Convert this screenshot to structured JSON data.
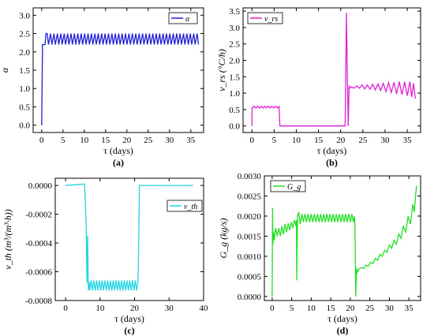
{
  "chart_data": [
    {
      "type": "line",
      "panel_label": "(a)",
      "xlabel": "τ (days)",
      "ylabel": "α",
      "xlim": [
        -2,
        38
      ],
      "ylim": [
        -0.2,
        3.2
      ],
      "xticks": [
        0,
        5,
        10,
        15,
        20,
        25,
        30,
        35
      ],
      "yticks": [
        0.0,
        0.5,
        1.0,
        1.5,
        2.0,
        2.5,
        3.0
      ],
      "ytick_labels": [
        "0.0",
        "0.5",
        "1.0",
        "1.5",
        "2.0",
        "2.5",
        "3.0"
      ],
      "legend_position": "top-right",
      "series": [
        {
          "name": "α",
          "color": "#1f1fd6",
          "x": [
            0,
            0.2,
            0.5,
            0.8,
            1.0,
            1.3,
            1.6,
            2.1,
            2.4,
            2.9,
            3.2,
            3.7,
            4.0,
            4.5,
            4.8,
            5.3,
            5.6,
            6.1,
            6.4,
            6.9,
            7.2,
            7.7,
            8.0,
            8.5,
            8.8,
            9.3,
            9.6,
            10.1,
            10.4,
            10.9,
            11.2,
            11.7,
            12.0,
            12.5,
            12.8,
            13.3,
            13.6,
            14.1,
            14.4,
            14.9,
            15.2,
            15.7,
            16.0,
            16.5,
            16.8,
            17.3,
            17.6,
            18.1,
            18.4,
            18.9,
            19.2,
            19.7,
            20.0,
            20.5,
            20.8,
            21.3,
            21.6,
            22.1,
            22.4,
            22.9,
            23.2,
            23.7,
            24.0,
            24.5,
            24.8,
            25.3,
            25.6,
            26.1,
            26.4,
            26.9,
            27.2,
            27.7,
            28.0,
            28.5,
            28.8,
            29.3,
            29.6,
            30.1,
            30.4,
            30.9,
            31.2,
            31.7,
            32.0,
            32.5,
            32.8,
            33.3,
            33.6,
            34.1,
            34.4,
            34.9,
            35.2,
            35.7,
            36.0,
            36.5,
            36.8
          ],
          "y": [
            0.0,
            2.2,
            2.2,
            2.2,
            2.5,
            2.5,
            2.2,
            2.5,
            2.2,
            2.5,
            2.2,
            2.5,
            2.2,
            2.5,
            2.2,
            2.5,
            2.2,
            2.5,
            2.2,
            2.5,
            2.2,
            2.5,
            2.2,
            2.5,
            2.2,
            2.5,
            2.2,
            2.5,
            2.2,
            2.5,
            2.2,
            2.5,
            2.2,
            2.5,
            2.2,
            2.5,
            2.2,
            2.5,
            2.2,
            2.5,
            2.2,
            2.5,
            2.2,
            2.5,
            2.2,
            2.5,
            2.2,
            2.5,
            2.2,
            2.5,
            2.2,
            2.5,
            2.2,
            2.5,
            2.2,
            2.5,
            2.2,
            2.5,
            2.2,
            2.5,
            2.2,
            2.5,
            2.2,
            2.5,
            2.2,
            2.5,
            2.2,
            2.5,
            2.2,
            2.5,
            2.2,
            2.5,
            2.2,
            2.5,
            2.2,
            2.5,
            2.2,
            2.5,
            2.2,
            2.5,
            2.2,
            2.5,
            2.2,
            2.5,
            2.2,
            2.5,
            2.2,
            2.5,
            2.2,
            2.5,
            2.2,
            2.5,
            2.2,
            2.5,
            2.2
          ]
        }
      ]
    },
    {
      "type": "line",
      "panel_label": "(b)",
      "xlabel": "τ (days)",
      "ylabel": "v_rs (°C/h)",
      "xlim": [
        -2,
        38
      ],
      "ylim": [
        -0.2,
        3.6
      ],
      "xticks": [
        0,
        5,
        10,
        15,
        20,
        25,
        30,
        35
      ],
      "yticks": [
        0.0,
        0.5,
        1.0,
        1.5,
        2.0,
        2.5,
        3.0,
        3.5
      ],
      "ytick_labels": [
        "0.0",
        "0.5",
        "1.0",
        "1.5",
        "2.0",
        "2.5",
        "3.0",
        "3.5"
      ],
      "legend_position": "top-left",
      "series": [
        {
          "name": "v_rs",
          "color": "#e020d8",
          "x": [
            0,
            0.05,
            0.5,
            0.9,
            1.3,
            1.7,
            2.1,
            2.5,
            2.9,
            3.3,
            3.7,
            4.1,
            4.5,
            4.9,
            5.3,
            5.7,
            6.1,
            6.2,
            6.3,
            10,
            15,
            20,
            21.0,
            21.3,
            21.5,
            21.7,
            21.9,
            22.1,
            22.4,
            23.0,
            23.6,
            24.2,
            24.8,
            25.4,
            26.0,
            26.6,
            27.2,
            27.8,
            28.4,
            29.0,
            29.6,
            30.2,
            30.8,
            31.4,
            32.0,
            32.6,
            33.2,
            33.8,
            34.4,
            35.0,
            35.6,
            36.0,
            36.4,
            36.8,
            37.0
          ],
          "y": [
            0.0,
            0.55,
            0.6,
            0.55,
            0.6,
            0.55,
            0.6,
            0.55,
            0.6,
            0.55,
            0.6,
            0.55,
            0.6,
            0.55,
            0.6,
            0.55,
            0.6,
            0.3,
            0.0,
            0.0,
            0.0,
            0.0,
            0.0,
            3.45,
            1.5,
            0.0,
            1.2,
            1.15,
            1.2,
            1.15,
            1.22,
            1.15,
            1.25,
            1.13,
            1.25,
            1.12,
            1.27,
            1.1,
            1.28,
            1.08,
            1.3,
            1.05,
            1.32,
            1.02,
            1.33,
            0.98,
            1.35,
            0.95,
            1.35,
            0.92,
            1.35,
            0.88,
            1.3,
            0.85,
            0.85
          ]
        }
      ]
    },
    {
      "type": "line",
      "panel_label": "(c)",
      "xlabel": "τ (days)",
      "ylabel": "v_th (m³/(m³·h))",
      "xlim": [
        -3,
        40
      ],
      "ylim": [
        -0.0008,
        5e-05
      ],
      "xticks": [
        0,
        10,
        20,
        30,
        40
      ],
      "yticks": [
        0.0,
        -0.0002,
        -0.0004,
        -0.0006,
        -0.0008
      ],
      "ytick_labels": [
        "0.0000",
        "-0.0002",
        "-0.0004",
        "-0.0006",
        "-0.0008"
      ],
      "legend_position": "right",
      "series": [
        {
          "name": "v_th",
          "color": "#22d4e4",
          "x": [
            0,
            3,
            5.5,
            6.0,
            6.2,
            6.4,
            6.6,
            6.8,
            7.0,
            7.4,
            7.8,
            8.2,
            8.6,
            9.0,
            9.4,
            9.8,
            10.2,
            10.6,
            11.0,
            11.4,
            11.8,
            12.2,
            12.6,
            13.0,
            13.4,
            13.8,
            14.2,
            14.6,
            15.0,
            15.4,
            15.8,
            16.2,
            16.6,
            17.0,
            17.4,
            17.8,
            18.2,
            18.6,
            19.0,
            19.4,
            19.8,
            20.2,
            20.6,
            21.0,
            21.2,
            21.4,
            22,
            30,
            37
          ],
          "y": [
            0.0,
            5e-06,
            1e-05,
            -0.0003,
            -0.00068,
            -0.00035,
            -0.00073,
            -0.00067,
            -0.00073,
            -0.00066,
            -0.00073,
            -0.00066,
            -0.00073,
            -0.00066,
            -0.00073,
            -0.00066,
            -0.00073,
            -0.00066,
            -0.00073,
            -0.00066,
            -0.00073,
            -0.00066,
            -0.00073,
            -0.00066,
            -0.00073,
            -0.00066,
            -0.00073,
            -0.00066,
            -0.00073,
            -0.00066,
            -0.00073,
            -0.00066,
            -0.00073,
            -0.00066,
            -0.00073,
            -0.00066,
            -0.00073,
            -0.00066,
            -0.00073,
            -0.00066,
            -0.00073,
            -0.00066,
            -0.00073,
            -0.00066,
            -0.0004,
            0.0,
            0.0,
            0.0,
            0.0
          ]
        }
      ]
    },
    {
      "type": "line",
      "panel_label": "(d)",
      "xlabel": "τ (days)",
      "ylabel": "G_g (kg/s)",
      "xlim": [
        -2,
        38
      ],
      "ylim": [
        -0.0001,
        0.003
      ],
      "xticks": [
        0,
        5,
        10,
        15,
        20,
        25,
        30,
        35
      ],
      "yticks": [
        0.0,
        0.0005,
        0.001,
        0.0015,
        0.002,
        0.0025,
        0.003
      ],
      "ytick_labels": [
        "0.0000",
        "0.0005",
        "0.0010",
        "0.0015",
        "0.0020",
        "0.0025",
        "0.0030"
      ],
      "legend_position": "top-left",
      "series": [
        {
          "name": "G_g",
          "color": "#22e022",
          "x": [
            0,
            0.1,
            0.2,
            0.35,
            0.5,
            0.9,
            1.3,
            1.7,
            2.1,
            2.5,
            2.9,
            3.3,
            3.7,
            4.1,
            4.5,
            4.9,
            5.3,
            5.7,
            6.1,
            6.2,
            6.3,
            6.5,
            6.8,
            7.2,
            7.6,
            8.0,
            8.4,
            8.8,
            9.2,
            9.6,
            10.0,
            10.4,
            10.8,
            11.2,
            11.6,
            12.0,
            12.4,
            12.8,
            13.2,
            13.6,
            14.0,
            14.4,
            14.8,
            15.2,
            15.6,
            16.0,
            16.4,
            16.8,
            17.2,
            17.6,
            18.0,
            18.4,
            18.8,
            19.2,
            19.6,
            20.0,
            20.4,
            20.8,
            21.0,
            21.2,
            21.4,
            21.6,
            21.8,
            22.2,
            22.8,
            23.4,
            24.0,
            24.6,
            25.2,
            25.8,
            26.4,
            27.0,
            27.6,
            28.2,
            28.8,
            29.4,
            30.0,
            30.6,
            31.2,
            31.8,
            32.4,
            33.0,
            33.6,
            34.2,
            34.8,
            35.4,
            36.0,
            36.4,
            36.8,
            37.0
          ],
          "y": [
            0.0,
            0.0022,
            0.0013,
            0.0016,
            0.0014,
            0.0017,
            0.0015,
            0.0017,
            0.0015,
            0.00175,
            0.00155,
            0.0018,
            0.0016,
            0.00182,
            0.00165,
            0.00185,
            0.0017,
            0.0019,
            0.00175,
            0.0019,
            0.0004,
            0.002,
            0.0021,
            0.0018,
            0.00205,
            0.00185,
            0.00205,
            0.00185,
            0.00205,
            0.00185,
            0.00205,
            0.00185,
            0.00205,
            0.00185,
            0.00205,
            0.00185,
            0.00205,
            0.00185,
            0.00205,
            0.00185,
            0.00205,
            0.00185,
            0.00205,
            0.00185,
            0.00205,
            0.00185,
            0.00205,
            0.00185,
            0.00205,
            0.00185,
            0.00205,
            0.00185,
            0.00205,
            0.00185,
            0.00205,
            0.00185,
            0.00205,
            0.00185,
            0.002,
            0.0018,
            0.0,
            0.0007,
            0.0006,
            0.00068,
            0.00072,
            0.0007,
            0.00078,
            0.00075,
            0.00085,
            0.00082,
            0.00095,
            0.0009,
            0.00105,
            0.001,
            0.00115,
            0.0011,
            0.00128,
            0.0012,
            0.0014,
            0.0013,
            0.00155,
            0.00145,
            0.00175,
            0.0016,
            0.002,
            0.0018,
            0.0023,
            0.0021,
            0.0026,
            0.00275
          ]
        }
      ]
    }
  ]
}
